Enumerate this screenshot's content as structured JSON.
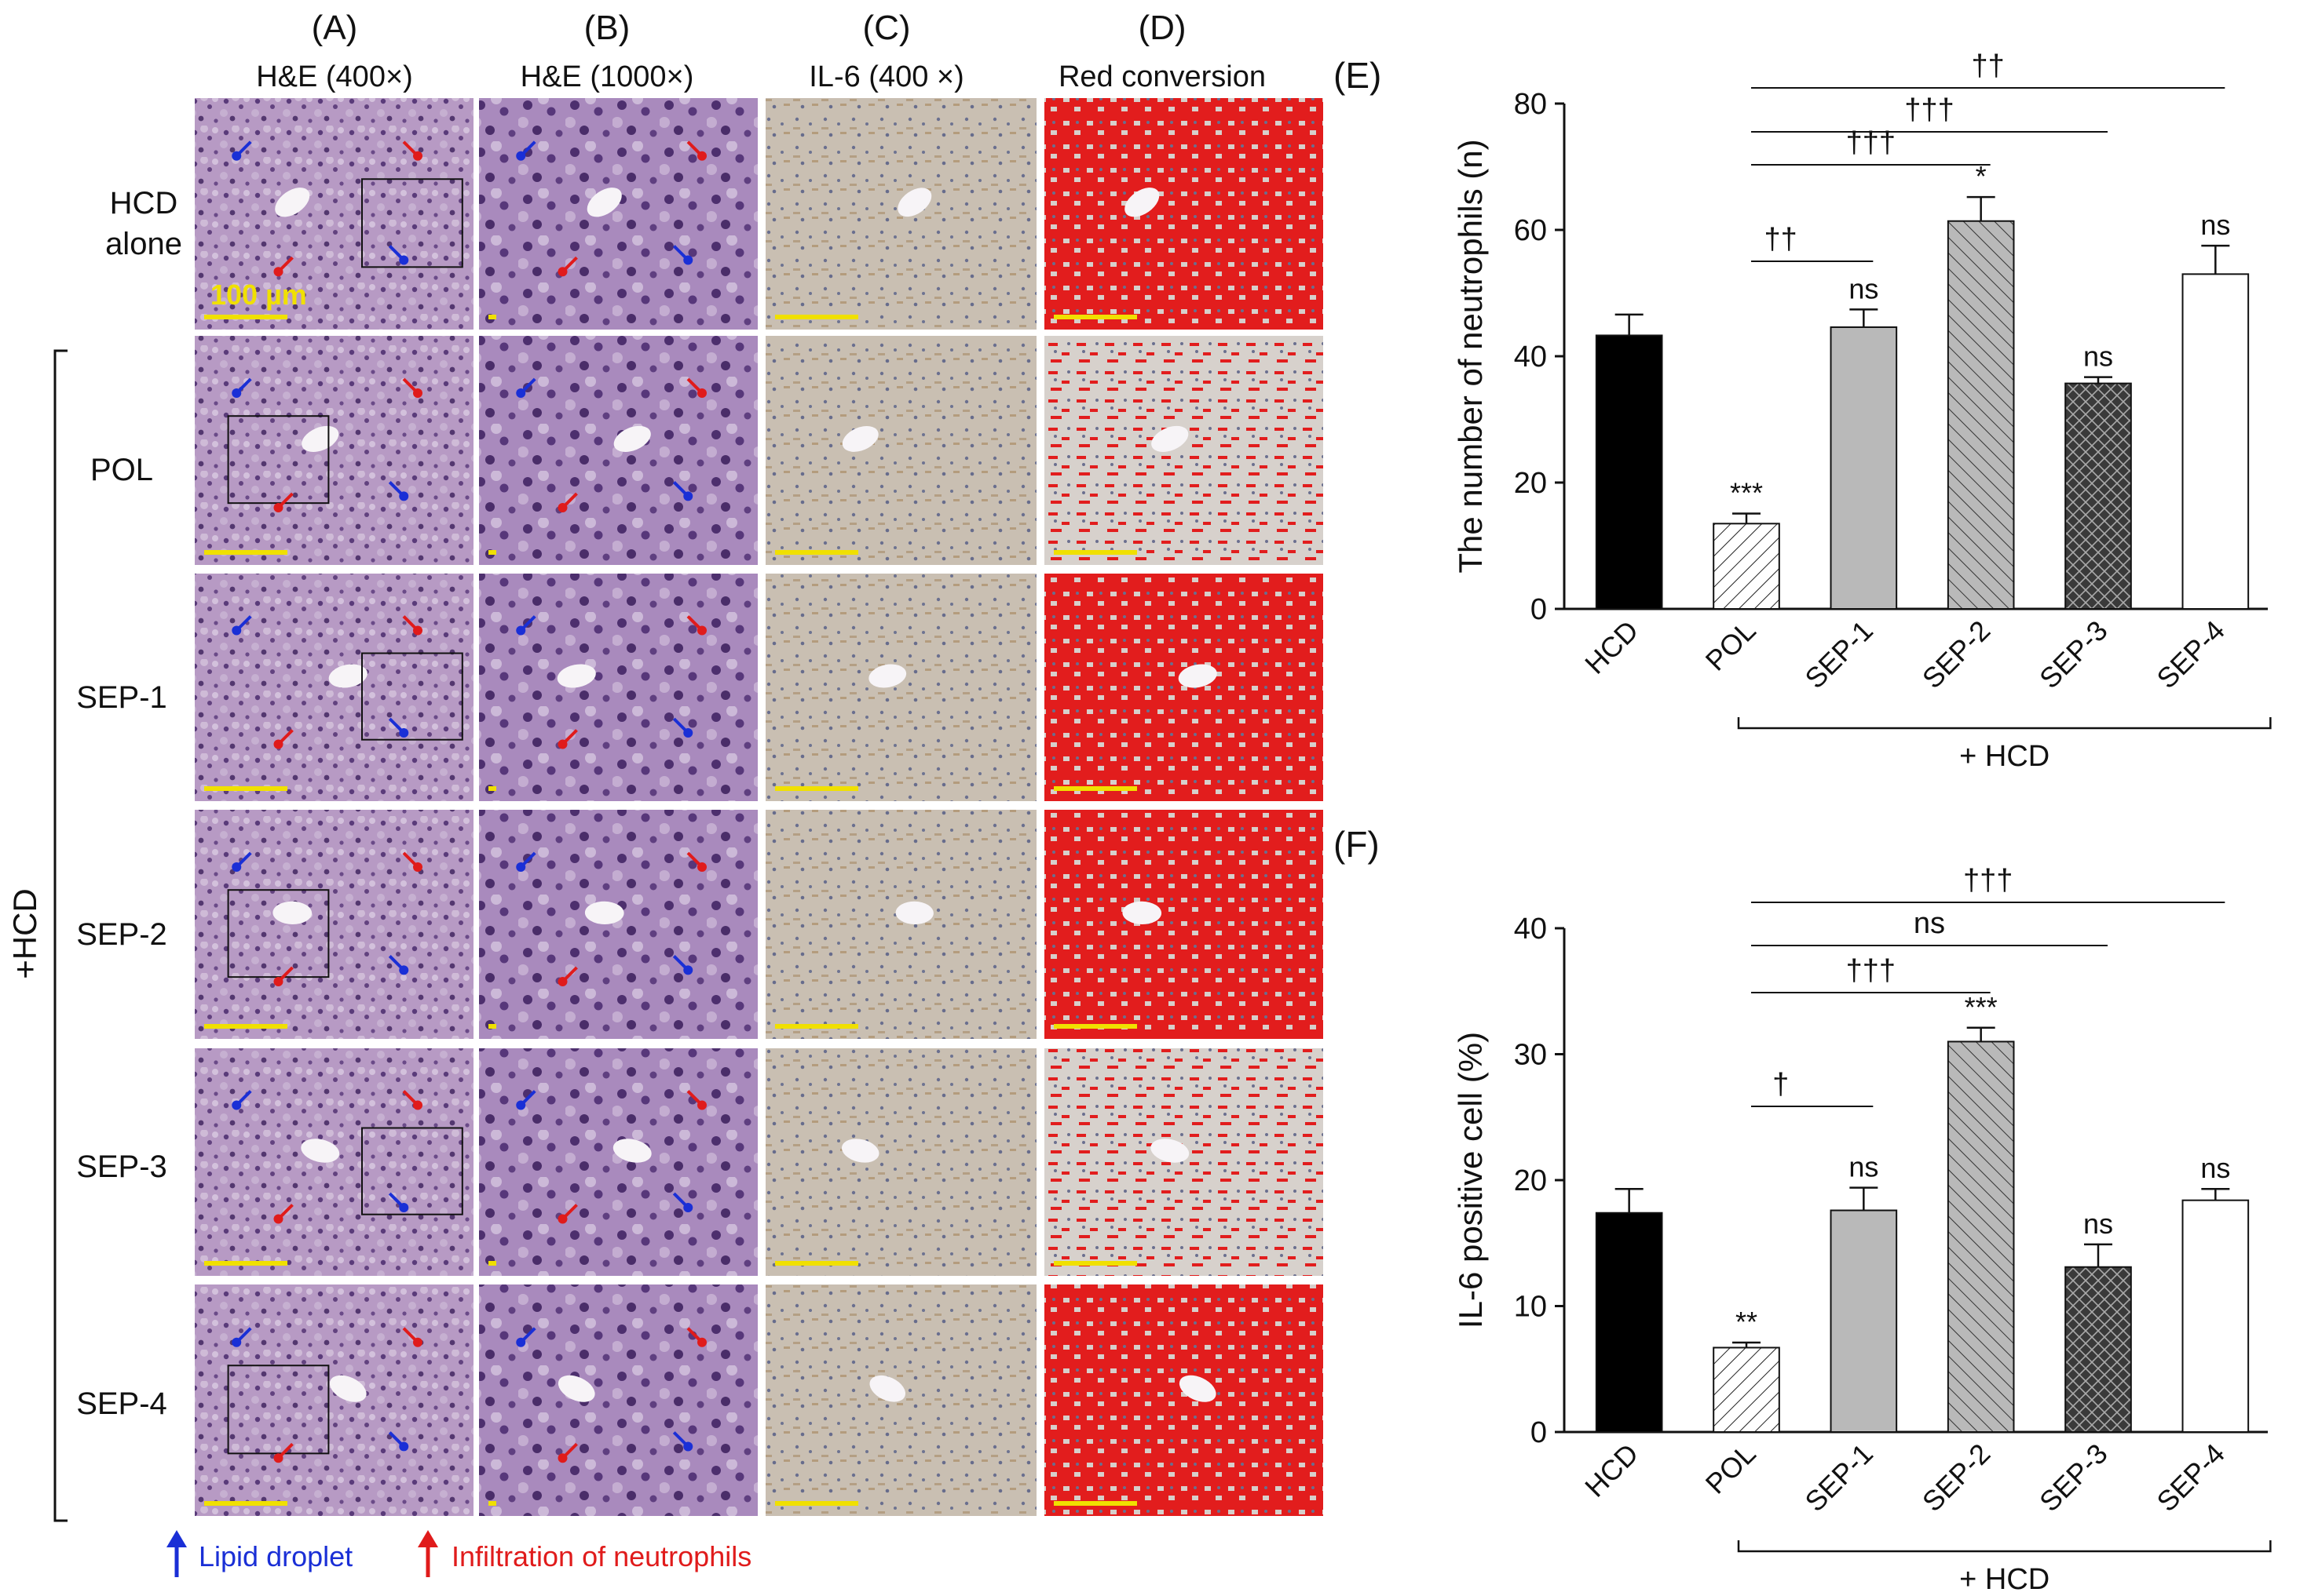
{
  "panel_letters": {
    "a": "(A)",
    "b": "(B)",
    "c": "(C)",
    "d": "(D)",
    "e": "(E)",
    "f": "(F)"
  },
  "column_titles": {
    "a": "H&E (400×)",
    "b": "H&E (1000×)",
    "c": "IL-6 (400 ×)",
    "d": "Red conversion"
  },
  "row_labels": {
    "hcd_line1": "HCD",
    "hcd_line2": "alone",
    "pol": "POL",
    "sep1": "SEP-1",
    "sep2": "SEP-2",
    "sep3": "SEP-3",
    "sep4": "SEP-4",
    "group": "+HCD"
  },
  "scale_bar_label": "100 µm",
  "legend": {
    "lipid": "Lipid droplet",
    "neutrophil": "Infiltration of neutrophils"
  },
  "colors": {
    "lipid_arrow": "#1a2fd6",
    "neutrophil_arrow": "#e01b1b",
    "scale_bar": "#f0e000",
    "he_tissue": "#b79ac4",
    "ihc_tissue": "#c9bfb2",
    "red_conv": "#e21d1d"
  },
  "chart_data": [
    {
      "panel": "(E)",
      "type": "bar",
      "ylabel": "The number of neutrophils (n)",
      "ylim": [
        0,
        80
      ],
      "yticks": [
        0,
        20,
        40,
        60,
        80
      ],
      "categories": [
        "HCD",
        "POL",
        "SEP-1",
        "SEP-2",
        "SEP-3",
        "SEP-4"
      ],
      "values": [
        43.3,
        13.5,
        44.6,
        61.4,
        35.7,
        53.0
      ],
      "errors": [
        3.3,
        1.6,
        2.8,
        3.8,
        1.0,
        4.5
      ],
      "fills": [
        "solid-black",
        "hatch-diag-light",
        "solid-gray",
        "hatch-diag-gray",
        "crosshatch-dark",
        "open-white"
      ],
      "bar_annotations": [
        "",
        "***",
        "ns",
        "*",
        "ns",
        "ns"
      ],
      "group_label": "+ HCD",
      "comparisons": [
        {
          "from": "POL",
          "to": "SEP-1",
          "label": "††"
        },
        {
          "from": "POL",
          "to": "SEP-2",
          "label": "†††"
        },
        {
          "from": "POL",
          "to": "SEP-3",
          "label": "†††"
        },
        {
          "from": "POL",
          "to": "SEP-4",
          "label": "††"
        }
      ]
    },
    {
      "panel": "(F)",
      "type": "bar",
      "ylabel": "IL-6 positive cell (%)",
      "ylim": [
        0,
        40
      ],
      "yticks": [
        0,
        10,
        20,
        30,
        40
      ],
      "categories": [
        "HCD",
        "POL",
        "SEP-1",
        "SEP-2",
        "SEP-3",
        "SEP-4"
      ],
      "values": [
        17.4,
        6.7,
        17.6,
        31.0,
        13.1,
        18.4
      ],
      "errors": [
        1.9,
        0.4,
        1.8,
        1.1,
        1.8,
        0.9
      ],
      "fills": [
        "solid-black",
        "hatch-diag-light",
        "solid-gray",
        "hatch-diag-gray",
        "crosshatch-dark",
        "open-white"
      ],
      "bar_annotations": [
        "",
        "**",
        "ns",
        "***",
        "ns",
        "ns"
      ],
      "group_label": "+ HCD",
      "comparisons": [
        {
          "from": "POL",
          "to": "SEP-1",
          "label": "†"
        },
        {
          "from": "POL",
          "to": "SEP-2",
          "label": "†††"
        },
        {
          "from": "POL",
          "to": "SEP-3",
          "label": "ns"
        },
        {
          "from": "POL",
          "to": "SEP-4",
          "label": "†††"
        }
      ]
    }
  ]
}
